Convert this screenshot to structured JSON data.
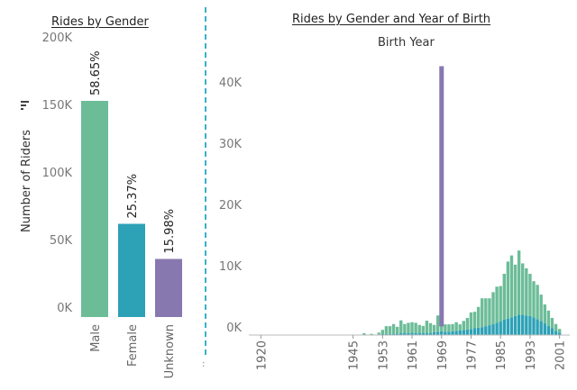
{
  "left": {
    "title": "Rides by Gender",
    "y_axis_label": "Number of Riders",
    "sort_icon": "sort-descending-icon"
  },
  "right": {
    "title": "Rides by Gender and Year of Birth",
    "subtitle": "Birth Year"
  },
  "divider_marker": ":",
  "chart_data": [
    {
      "type": "bar",
      "title": "Rides by Gender",
      "xlabel": "",
      "ylabel": "Number of Riders",
      "categories": [
        "Male",
        "Female",
        "Unknown"
      ],
      "values": [
        160000,
        69000,
        43000
      ],
      "data_labels": [
        "58.65%",
        "25.37%",
        "15.98%"
      ],
      "colors": [
        "#6cbc98",
        "#2da1b6",
        "#8878b0"
      ],
      "ylim": [
        0,
        200000
      ],
      "yticks": [
        0,
        50000,
        100000,
        150000,
        200000
      ],
      "ytick_labels": [
        "0K",
        "50K",
        "100K",
        "150K",
        "200K"
      ],
      "grid": false,
      "legend": "none"
    },
    {
      "type": "bar",
      "title": "Rides by Gender and Year of Birth",
      "subtitle": "Birth Year",
      "stacked": true,
      "x": [
        1948,
        1950,
        1952,
        1953,
        1954,
        1955,
        1956,
        1957,
        1958,
        1959,
        1960,
        1961,
        1962,
        1963,
        1964,
        1965,
        1966,
        1967,
        1968,
        1969,
        1970,
        1971,
        1972,
        1973,
        1974,
        1975,
        1976,
        1977,
        1978,
        1979,
        1980,
        1981,
        1982,
        1983,
        1984,
        1985,
        1986,
        1987,
        1988,
        1989,
        1990,
        1991,
        1992,
        1993,
        1994,
        1995,
        1996,
        1997,
        1998,
        1999,
        2000,
        2001
      ],
      "series": [
        {
          "color": "#2da1b6",
          "values": [
            50,
            50,
            100,
            150,
            150,
            200,
            200,
            250,
            300,
            350,
            300,
            400,
            300,
            350,
            300,
            350,
            350,
            450,
            500,
            600,
            550,
            550,
            600,
            700,
            750,
            800,
            900,
            1000,
            1100,
            1200,
            1300,
            1450,
            1600,
            1800,
            2000,
            2200,
            2500,
            2700,
            2900,
            3100,
            3300,
            3300,
            3200,
            3100,
            2900,
            2600,
            2300,
            1900,
            1500,
            1100,
            700,
            400
          ]
        },
        {
          "color": "#6cbc98",
          "values": [
            250,
            150,
            300,
            700,
            1300,
            1250,
            1600,
            1100,
            2100,
            1450,
            1700,
            1700,
            1700,
            1300,
            1200,
            2000,
            1600,
            1200,
            2700,
            800,
            1200,
            1200,
            1200,
            1400,
            1000,
            1500,
            1900,
            2700,
            2700,
            3400,
            4700,
            4550,
            4400,
            5200,
            5900,
            5800,
            7500,
            9300,
            10100,
            8400,
            10500,
            8400,
            7700,
            6900,
            5900,
            5600,
            4300,
            3100,
            2500,
            1700,
            1100,
            600
          ]
        },
        {
          "color": "#8878b0",
          "values": [
            0,
            0,
            0,
            0,
            0,
            0,
            0,
            0,
            0,
            0,
            0,
            0,
            0,
            0,
            0,
            0,
            0,
            0,
            0,
            42500,
            0,
            0,
            0,
            0,
            0,
            0,
            0,
            0,
            0,
            0,
            0,
            0,
            0,
            0,
            0,
            0,
            0,
            0,
            0,
            0,
            0,
            0,
            0,
            0,
            0,
            0,
            0,
            0,
            0,
            0,
            0,
            0
          ]
        }
      ],
      "xticks": [
        1920,
        1945,
        1953,
        1961,
        1969,
        1977,
        1985,
        1993,
        2001
      ],
      "yticks": [
        0,
        10000,
        20000,
        30000,
        40000
      ],
      "ytick_labels": [
        "0K",
        "10K",
        "20K",
        "30K",
        "40K"
      ],
      "ylim": [
        0,
        45000
      ],
      "xlim": [
        1916,
        2005
      ],
      "grid": false,
      "legend": "none"
    }
  ]
}
